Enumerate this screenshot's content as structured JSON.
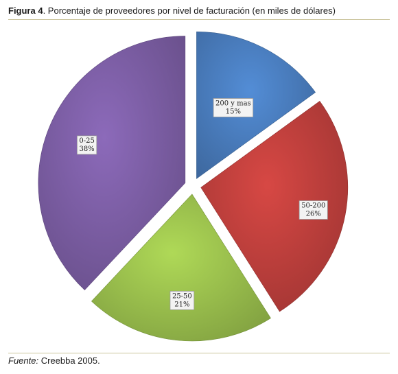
{
  "caption": {
    "label": "Figura 4",
    "text": ". Porcentaje de proveedores por nivel de facturación (en miles de dólares)"
  },
  "source": {
    "label": "Fuente:",
    "text": " Creebba 2005."
  },
  "chart_data": {
    "type": "pie",
    "title": "",
    "slices": [
      {
        "label": "200 y mas",
        "value": 15,
        "display": "15%",
        "color": "#4a7ebf"
      },
      {
        "label": "50-200",
        "value": 26,
        "display": "26%",
        "color": "#c0403d"
      },
      {
        "label": "25-50",
        "value": 21,
        "display": "21%",
        "color": "#9cc24e"
      },
      {
        "label": "0-25",
        "value": 38,
        "display": "38%",
        "color": "#7d5fa6"
      }
    ],
    "start_angle_deg": 0,
    "direction": "clockwise",
    "exploded": true
  }
}
